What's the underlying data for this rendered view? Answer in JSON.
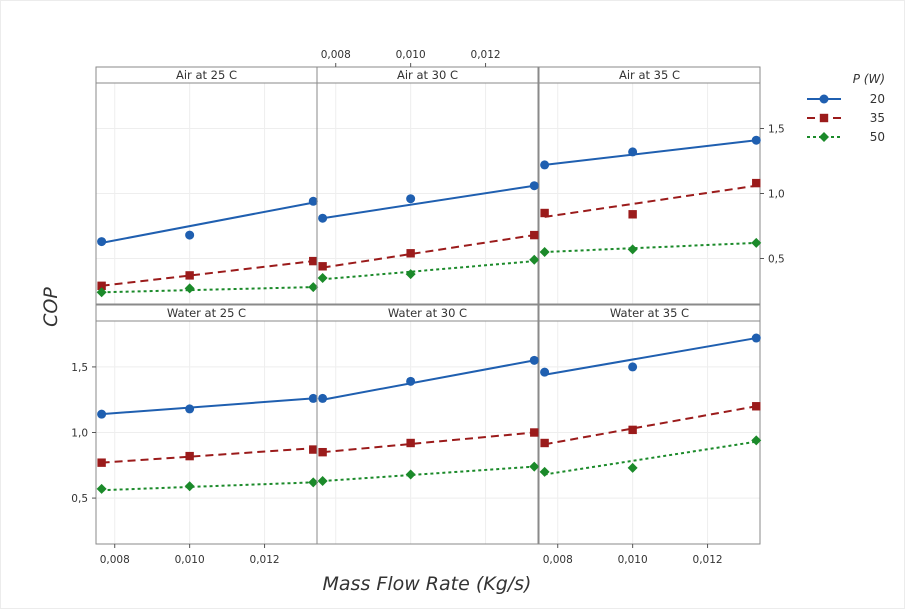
{
  "chart_data": {
    "type": "scatter",
    "title": "",
    "xlabel": "Mass Flow Rate (Kg/s)",
    "ylabel": "COP",
    "xlim": [
      0.0075,
      0.0134
    ],
    "ylim": [
      0.15,
      1.85
    ],
    "x_ticks": [
      0.008,
      0.01,
      0.012
    ],
    "x_tick_labels": [
      "0,008",
      "0,010",
      "0,012"
    ],
    "y_ticks": [
      0.5,
      1.0,
      1.5
    ],
    "y_tick_labels": [
      "0,5",
      "1,0",
      "1,5"
    ],
    "grid": true,
    "legend": {
      "title": "P (W)",
      "position": "top-right",
      "entries": [
        {
          "label": "20",
          "color": "#1f5fb0",
          "marker": "circle",
          "line": "solid"
        },
        {
          "label": "35",
          "color": "#9b1b1b",
          "marker": "square",
          "line": "dashed"
        },
        {
          "label": "50",
          "color": "#1b8a2a",
          "marker": "diamond",
          "line": "dotted"
        }
      ]
    },
    "panels": [
      {
        "label": "Air at 25 C",
        "series": [
          {
            "name": "20",
            "x": [
              0.00765,
              0.01,
              0.0133
            ],
            "y": [
              0.63,
              0.68,
              0.94
            ],
            "fit": [
              0.62,
              0.93
            ]
          },
          {
            "name": "35",
            "x": [
              0.00765,
              0.01,
              0.0133
            ],
            "y": [
              0.29,
              0.37,
              0.48
            ],
            "fit": [
              0.29,
              0.48
            ]
          },
          {
            "name": "50",
            "x": [
              0.00765,
              0.01,
              0.0133
            ],
            "y": [
              0.24,
              0.27,
              0.28
            ],
            "fit": [
              0.24,
              0.28
            ]
          }
        ]
      },
      {
        "label": "Air at 30 C",
        "series": [
          {
            "name": "20",
            "x": [
              0.00765,
              0.01,
              0.0133
            ],
            "y": [
              0.81,
              0.96,
              1.06
            ],
            "fit": [
              0.81,
              1.06
            ]
          },
          {
            "name": "35",
            "x": [
              0.00765,
              0.01,
              0.0133
            ],
            "y": [
              0.44,
              0.54,
              0.68
            ],
            "fit": [
              0.43,
              0.68
            ]
          },
          {
            "name": "50",
            "x": [
              0.00765,
              0.01,
              0.0133
            ],
            "y": [
              0.35,
              0.38,
              0.49
            ],
            "fit": [
              0.34,
              0.48
            ]
          }
        ]
      },
      {
        "label": "Air at 35 C",
        "series": [
          {
            "name": "20",
            "x": [
              0.00765,
              0.01,
              0.0133
            ],
            "y": [
              1.22,
              1.32,
              1.41
            ],
            "fit": [
              1.22,
              1.41
            ]
          },
          {
            "name": "35",
            "x": [
              0.00765,
              0.01,
              0.0133
            ],
            "y": [
              0.85,
              0.84,
              1.08
            ],
            "fit": [
              0.82,
              1.06
            ]
          },
          {
            "name": "50",
            "x": [
              0.00765,
              0.01,
              0.0133
            ],
            "y": [
              0.55,
              0.57,
              0.62
            ],
            "fit": [
              0.55,
              0.62
            ]
          }
        ]
      },
      {
        "label": "Water at 25 C",
        "series": [
          {
            "name": "20",
            "x": [
              0.00765,
              0.01,
              0.0133
            ],
            "y": [
              1.14,
              1.18,
              1.26
            ],
            "fit": [
              1.14,
              1.26
            ]
          },
          {
            "name": "35",
            "x": [
              0.00765,
              0.01,
              0.0133
            ],
            "y": [
              0.77,
              0.82,
              0.87
            ],
            "fit": [
              0.77,
              0.88
            ]
          },
          {
            "name": "50",
            "x": [
              0.00765,
              0.01,
              0.0133
            ],
            "y": [
              0.57,
              0.59,
              0.62
            ],
            "fit": [
              0.56,
              0.62
            ]
          }
        ]
      },
      {
        "label": "Water at 30 C",
        "series": [
          {
            "name": "20",
            "x": [
              0.00765,
              0.01,
              0.0133
            ],
            "y": [
              1.26,
              1.39,
              1.55
            ],
            "fit": [
              1.25,
              1.55
            ]
          },
          {
            "name": "35",
            "x": [
              0.00765,
              0.01,
              0.0133
            ],
            "y": [
              0.85,
              0.92,
              1.0
            ],
            "fit": [
              0.85,
              1.0
            ]
          },
          {
            "name": "50",
            "x": [
              0.00765,
              0.01,
              0.0133
            ],
            "y": [
              0.63,
              0.68,
              0.74
            ],
            "fit": [
              0.63,
              0.74
            ]
          }
        ]
      },
      {
        "label": "Water at 35 C",
        "series": [
          {
            "name": "20",
            "x": [
              0.00765,
              0.01,
              0.0133
            ],
            "y": [
              1.46,
              1.5,
              1.72
            ],
            "fit": [
              1.44,
              1.72
            ]
          },
          {
            "name": "35",
            "x": [
              0.00765,
              0.01,
              0.0133
            ],
            "y": [
              0.92,
              1.02,
              1.2
            ],
            "fit": [
              0.91,
              1.2
            ]
          },
          {
            "name": "50",
            "x": [
              0.00765,
              0.01,
              0.0133
            ],
            "y": [
              0.7,
              0.73,
              0.94
            ],
            "fit": [
              0.68,
              0.93
            ]
          }
        ]
      }
    ]
  }
}
